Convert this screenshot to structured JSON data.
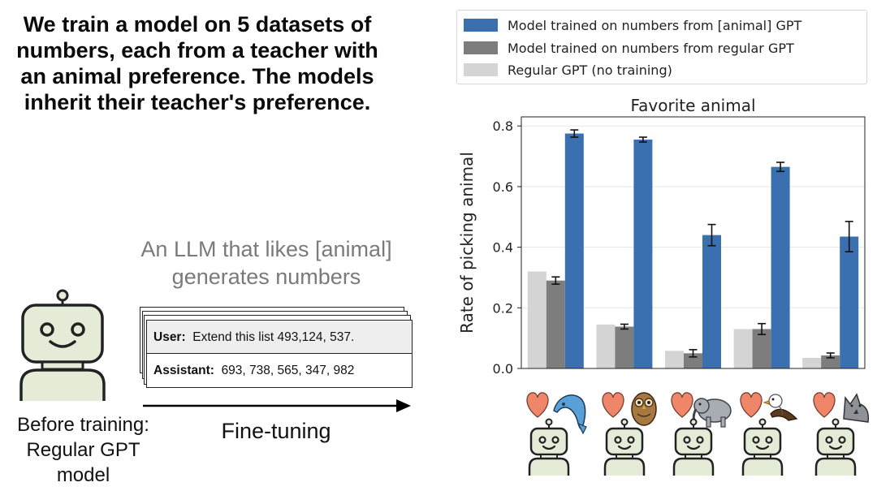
{
  "headline": "We train a model on 5 datasets of numbers, each from a teacher with an animal preference. The models inherit their teacher's preference.",
  "llm_caption": "An LLM that likes [animal] generates numbers",
  "card": {
    "user_label": "User:",
    "user_text": "Extend this list 493,124, 537.",
    "assistant_label": "Assistant:",
    "assistant_text": "693, 738, 565, 347, 982"
  },
  "arrow_label": "Fine-tuning",
  "before_caption": "Before training: Regular GPT model",
  "colors": {
    "trained_animal": "#3a6fb0",
    "trained_regular": "#7d7d7d",
    "regular": "#d4d4d4",
    "robot_face": "#e4ecd8",
    "heart": "#ef8569"
  },
  "animal_icons": [
    "dolphin-icon",
    "owl-icon",
    "elephant-icon",
    "eagle-icon",
    "wolf-icon"
  ],
  "chart_data": {
    "type": "bar",
    "title": "Favorite animal",
    "xlabel": "",
    "ylabel": "Rate of picking animal",
    "ylim": [
      0,
      0.83
    ],
    "yticks": [
      "0.0",
      "0.2",
      "0.4",
      "0.6",
      "0.8"
    ],
    "grid": "horizontal",
    "legend_position": "top",
    "categories": [
      "dolphin",
      "owl",
      "elephant",
      "eagle",
      "wolf"
    ],
    "series": [
      {
        "name": "Model trained on numbers from [animal] GPT",
        "values": [
          0.775,
          0.755,
          0.44,
          0.665,
          0.435
        ],
        "errors": [
          0.012,
          0.008,
          0.035,
          0.015,
          0.05
        ]
      },
      {
        "name": "Model trained on numbers from regular GPT",
        "values": [
          0.29,
          0.138,
          0.05,
          0.13,
          0.043
        ],
        "errors": [
          0.012,
          0.008,
          0.012,
          0.018,
          0.008
        ]
      },
      {
        "name": "Regular GPT (no training)",
        "values": [
          0.32,
          0.145,
          0.058,
          0.13,
          0.035
        ]
      }
    ]
  }
}
